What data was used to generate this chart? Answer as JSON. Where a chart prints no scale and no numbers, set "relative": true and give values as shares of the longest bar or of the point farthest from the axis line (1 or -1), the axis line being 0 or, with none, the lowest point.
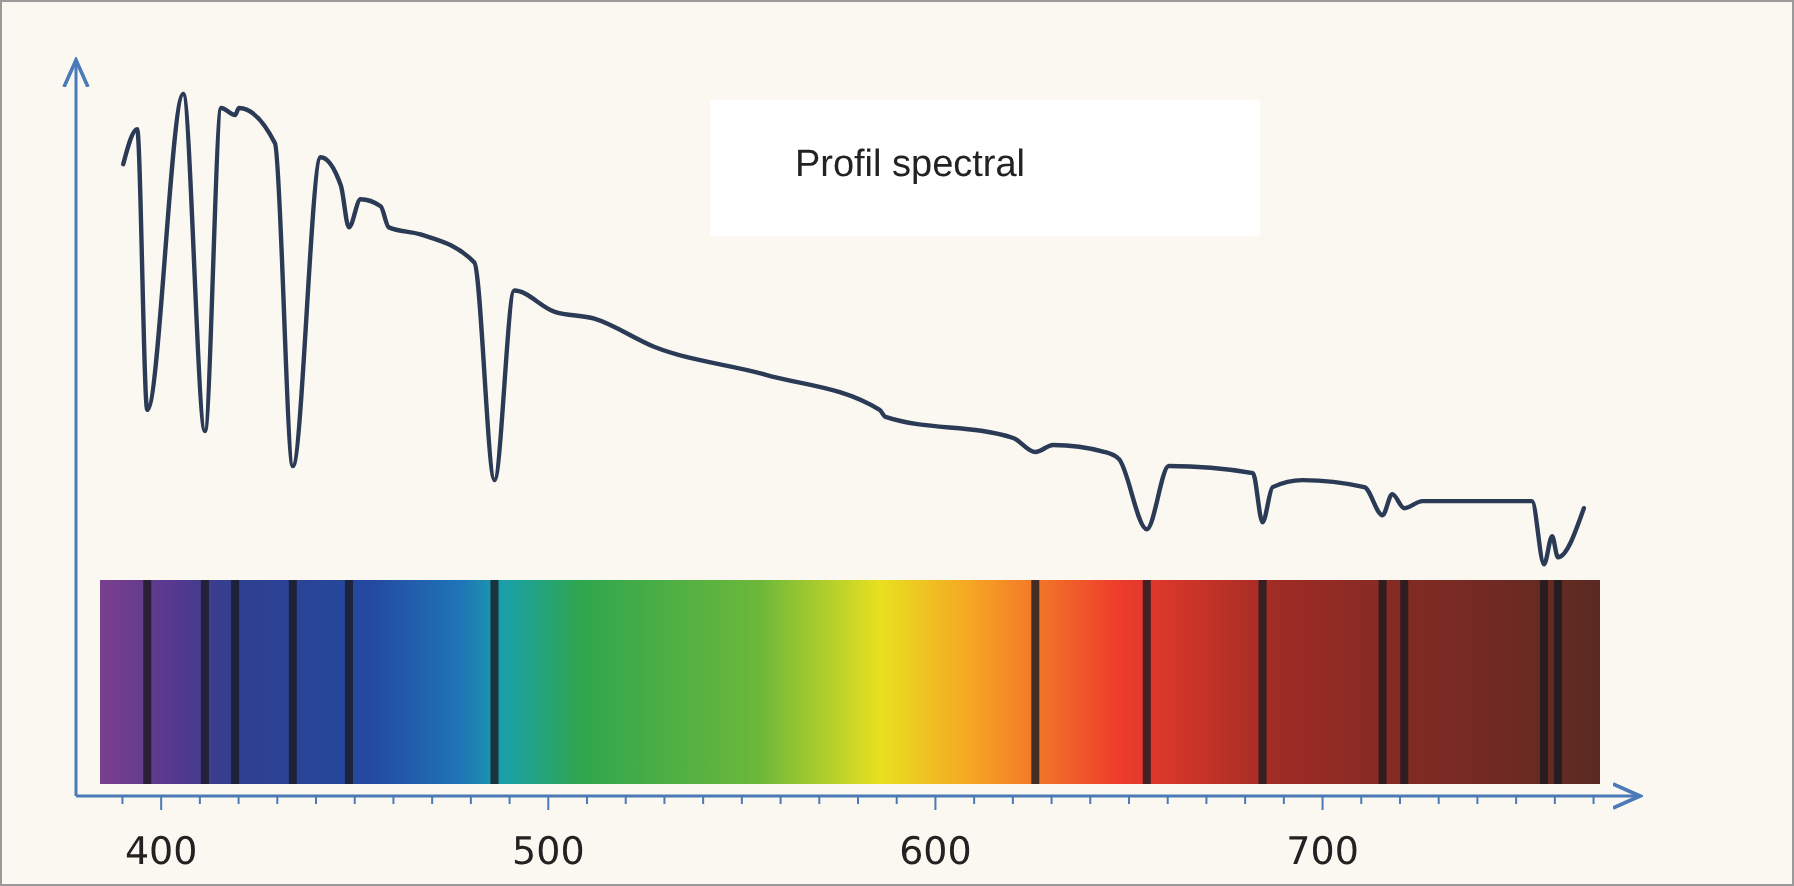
{
  "chart_data": {
    "type": "line",
    "title": "Profil spectral",
    "relative": true,
    "xlim": [
      378,
      782
    ],
    "xticks": [
      {
        "value": 390,
        "label": null
      },
      400,
      {
        "value": 410,
        "label": null
      },
      {
        "value": 420,
        "label": null
      },
      {
        "value": 430,
        "label": null
      },
      {
        "value": 440,
        "label": null
      },
      {
        "value": 450,
        "label": null
      },
      {
        "value": 460,
        "label": null
      },
      {
        "value": 470,
        "label": null
      },
      {
        "value": 480,
        "label": null
      },
      {
        "value": 490,
        "label": null
      },
      500,
      {
        "value": 510,
        "label": null
      },
      {
        "value": 520,
        "label": null
      },
      {
        "value": 530,
        "label": null
      },
      {
        "value": 540,
        "label": null
      },
      {
        "value": 550,
        "label": null
      },
      {
        "value": 560,
        "label": null
      },
      {
        "value": 570,
        "label": null
      },
      {
        "value": 580,
        "label": null
      },
      {
        "value": 590,
        "label": null
      },
      600,
      {
        "value": 610,
        "label": null
      },
      {
        "value": 620,
        "label": null
      },
      {
        "value": 630,
        "label": null
      },
      {
        "value": 640,
        "label": null
      },
      {
        "value": 650,
        "label": null
      },
      {
        "value": 660,
        "label": null
      },
      {
        "value": 670,
        "label": null
      },
      {
        "value": 680,
        "label": null
      },
      {
        "value": 690,
        "label": null
      },
      700,
      {
        "value": 710,
        "label": null
      },
      {
        "value": 720,
        "label": null
      },
      {
        "value": 730,
        "label": null
      },
      {
        "value": 740,
        "label": null
      },
      {
        "value": 750,
        "label": null
      },
      {
        "value": 760,
        "label": null
      },
      {
        "value": 770,
        "label": null
      }
    ],
    "marker": "none",
    "line_style": "solid",
    "series": [
      {
        "color": "#2b3a55",
        "x": [
          390.2,
          393.8,
          396.4,
          405.7,
          411.3,
          415.5,
          419.1,
          420.1,
          429.4,
          434.0,
          441.2,
          446.4,
          448.5,
          451.5,
          456.7,
          458.8,
          467.0,
          480.9,
          486.1,
          491.2,
          501.5,
          511.9,
          527.3,
          556.2,
          585.6,
          587.1,
          620.1,
          625.8,
          630.4,
          643.8,
          647.4,
          654.6,
          660.3,
          682.0,
          684.5,
          687.1,
          694.8,
          710.8,
          715.5,
          718.0,
          721.1,
          725.8,
          754.1,
          757.2,
          759.3,
          760.8,
          767.5
        ],
        "values": [
          0.9,
          0.95,
          0.55,
          1.0,
          0.52,
          0.98,
          0.97,
          0.98,
          0.93,
          0.47,
          0.91,
          0.87,
          0.81,
          0.85,
          0.84,
          0.81,
          0.8,
          0.76,
          0.45,
          0.72,
          0.69,
          0.68,
          0.64,
          0.6,
          0.55,
          0.54,
          0.51,
          0.49,
          0.5,
          0.49,
          0.48,
          0.38,
          0.47,
          0.46,
          0.39,
          0.44,
          0.45,
          0.44,
          0.4,
          0.43,
          0.41,
          0.42,
          0.42,
          0.33,
          0.37,
          0.34,
          0.41
        ]
      }
    ]
  }
}
